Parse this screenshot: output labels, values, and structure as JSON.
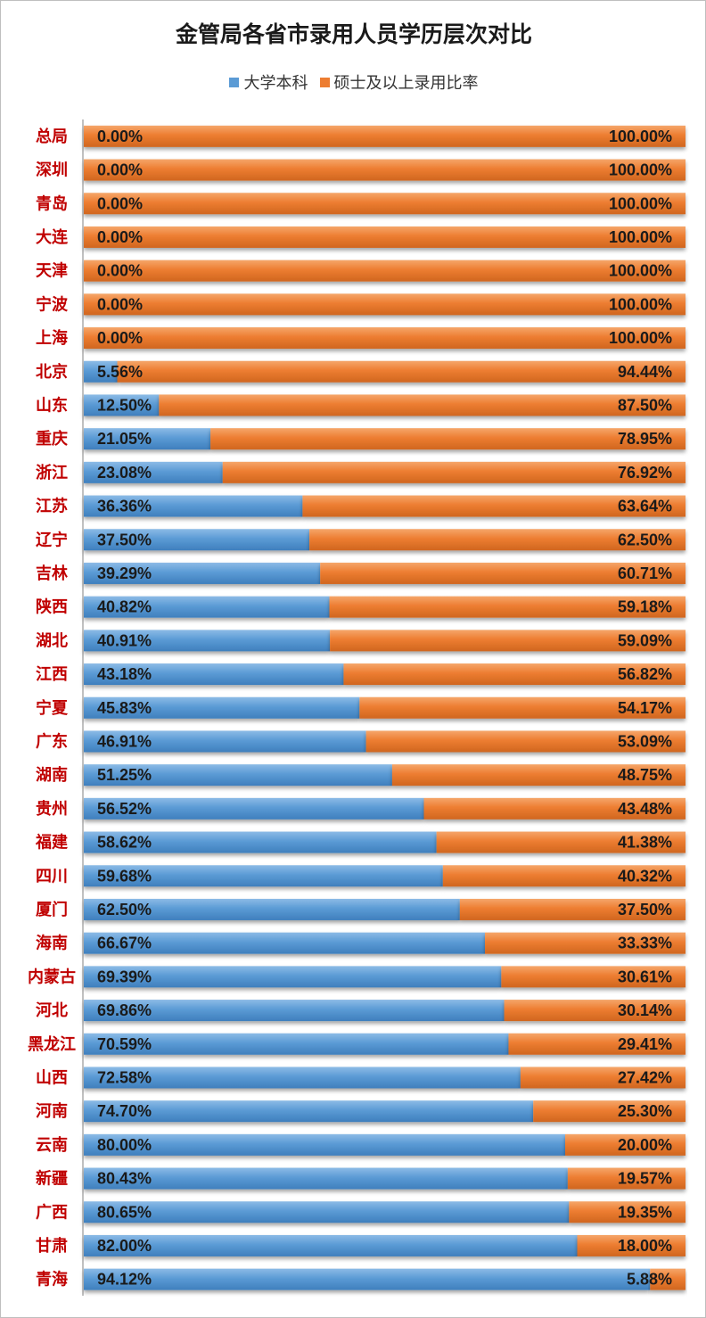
{
  "chart_data": {
    "type": "bar",
    "orientation": "horizontal",
    "stacked": "percent",
    "title": "金管局各省市录用人员学历层次对比",
    "categories": [
      "总局",
      "深圳",
      "青岛",
      "大连",
      "天津",
      "宁波",
      "上海",
      "北京",
      "山东",
      "重庆",
      "浙江",
      "江苏",
      "辽宁",
      "吉林",
      "陕西",
      "湖北",
      "江西",
      "宁夏",
      "广东",
      "湖南",
      "贵州",
      "福建",
      "四川",
      "厦门",
      "海南",
      "内蒙古",
      "河北",
      "黑龙江",
      "山西",
      "河南",
      "云南",
      "新疆",
      "广西",
      "甘肃",
      "青海"
    ],
    "series": [
      {
        "name": "大学本科",
        "color": "#5b9bd5",
        "values": [
          0.0,
          0.0,
          0.0,
          0.0,
          0.0,
          0.0,
          0.0,
          5.56,
          12.5,
          21.05,
          23.08,
          36.36,
          37.5,
          39.29,
          40.82,
          40.91,
          43.18,
          45.83,
          46.91,
          51.25,
          56.52,
          58.62,
          59.68,
          62.5,
          66.67,
          69.39,
          69.86,
          70.59,
          72.58,
          74.7,
          80.0,
          80.43,
          80.65,
          82.0,
          94.12
        ],
        "labels": [
          "0.00%",
          "0.00%",
          "0.00%",
          "0.00%",
          "0.00%",
          "0.00%",
          "0.00%",
          "5.56%",
          "12.50%",
          "21.05%",
          "23.08%",
          "36.36%",
          "37.50%",
          "39.29%",
          "40.82%",
          "40.91%",
          "43.18%",
          "45.83%",
          "46.91%",
          "51.25%",
          "56.52%",
          "58.62%",
          "59.68%",
          "62.50%",
          "66.67%",
          "69.39%",
          "69.86%",
          "70.59%",
          "72.58%",
          "74.70%",
          "80.00%",
          "80.43%",
          "80.65%",
          "82.00%",
          "94.12%"
        ]
      },
      {
        "name": "硕士及以上录用比率",
        "color": "#ed7d31",
        "values": [
          100.0,
          100.0,
          100.0,
          100.0,
          100.0,
          100.0,
          100.0,
          94.44,
          87.5,
          78.95,
          76.92,
          63.64,
          62.5,
          60.71,
          59.18,
          59.09,
          56.82,
          54.17,
          53.09,
          48.75,
          43.48,
          41.38,
          40.32,
          37.5,
          33.33,
          30.61,
          30.14,
          29.41,
          27.42,
          25.3,
          20.0,
          19.57,
          19.35,
          18.0,
          5.88
        ],
        "labels": [
          "100.00%",
          "100.00%",
          "100.00%",
          "100.00%",
          "100.00%",
          "100.00%",
          "100.00%",
          "94.44%",
          "87.50%",
          "78.95%",
          "76.92%",
          "63.64%",
          "62.50%",
          "60.71%",
          "59.18%",
          "59.09%",
          "56.82%",
          "54.17%",
          "53.09%",
          "48.75%",
          "43.48%",
          "41.38%",
          "40.32%",
          "37.50%",
          "33.33%",
          "30.61%",
          "30.14%",
          "29.41%",
          "27.42%",
          "25.30%",
          "20.00%",
          "19.57%",
          "19.35%",
          "18.00%",
          "5.88%"
        ]
      }
    ],
    "xlim": [
      0,
      100
    ],
    "legend_position": "top",
    "grid": false,
    "category_label_color": "#c00000",
    "value_label_color": "#1a1a1a"
  }
}
